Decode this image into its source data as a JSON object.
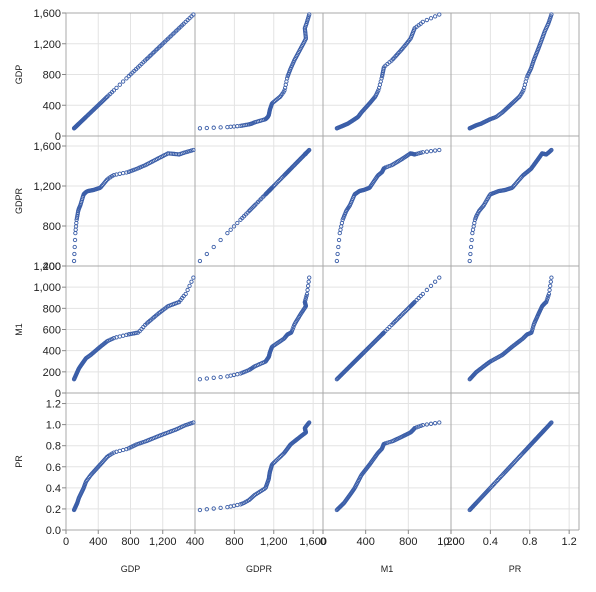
{
  "chart_data": {
    "type": "scatter",
    "variables": [
      "GDP",
      "GDPR",
      "M1",
      "PR"
    ],
    "grid": true,
    "axes": {
      "GDP": {
        "range": [
          0,
          1600
        ],
        "ticks": [
          0,
          400,
          800,
          1200
        ],
        "tick_labels": [
          "0",
          "400",
          "800",
          "1,200"
        ],
        "row_ticks": [
          0,
          400,
          800,
          1200,
          1600
        ],
        "row_tick_labels": [
          "0",
          "400",
          "800",
          "1,200",
          "1,600"
        ],
        "data_range": [
          100,
          1580
        ]
      },
      "GDPR": {
        "range": [
          400,
          1700
        ],
        "ticks": [
          400,
          800,
          1200,
          1600
        ],
        "tick_labels": [
          "400",
          "800",
          "1,200",
          "1,600"
        ],
        "row_ticks": [
          400,
          800,
          1200,
          1600
        ],
        "row_tick_labels": [
          "400",
          "800",
          "1,200",
          "1,600"
        ],
        "data_range": [
          450,
          1560
        ]
      },
      "M1": {
        "range": [
          0,
          1200
        ],
        "ticks": [
          0,
          400,
          800,
          1200
        ],
        "tick_labels": [
          "0",
          "400",
          "800",
          "1,200"
        ],
        "row_ticks": [
          0,
          200,
          400,
          600,
          800,
          1000,
          1200
        ],
        "row_tick_labels": [
          "0",
          "200",
          "400",
          "600",
          "800",
          "1,000",
          "1,200"
        ],
        "data_range": [
          130,
          1090
        ]
      },
      "PR": {
        "range": [
          0,
          1.3
        ],
        "ticks": [
          0,
          0.4,
          0.8,
          1.2
        ],
        "tick_labels": [
          "0.0",
          "0.4",
          "0.8",
          "1.2"
        ],
        "row_ticks": [
          0,
          0.2,
          0.4,
          0.6,
          0.8,
          1.0,
          1.2
        ],
        "row_tick_labels": [
          "0.0",
          "0.2",
          "0.4",
          "0.6",
          "0.8",
          "1.0",
          "1.2"
        ],
        "data_range": [
          0.19,
          1.02
        ]
      }
    },
    "series_shapes": {
      "GDP": [
        [
          0,
          0
        ],
        [
          0.15,
          0.04
        ],
        [
          0.3,
          0.1
        ],
        [
          0.45,
          0.22
        ],
        [
          0.52,
          0.28
        ],
        [
          0.56,
          0.34
        ],
        [
          0.6,
          0.45
        ],
        [
          0.7,
          0.6
        ],
        [
          0.82,
          0.75
        ],
        [
          0.95,
          0.92
        ],
        [
          1,
          1
        ]
      ],
      "GDPR": [
        [
          0,
          0
        ],
        [
          0.04,
          0.25
        ],
        [
          0.08,
          0.37
        ],
        [
          0.13,
          0.45
        ],
        [
          0.18,
          0.5
        ],
        [
          0.25,
          0.6
        ],
        [
          0.32,
          0.63
        ],
        [
          0.38,
          0.64
        ],
        [
          0.45,
          0.66
        ],
        [
          0.55,
          0.77
        ],
        [
          0.65,
          0.83
        ],
        [
          0.75,
          0.9
        ],
        [
          0.85,
          0.97
        ],
        [
          0.92,
          0.96
        ],
        [
          1,
          1
        ]
      ],
      "M1": [
        [
          0,
          0
        ],
        [
          0.2,
          0.14
        ],
        [
          0.35,
          0.24
        ],
        [
          0.5,
          0.36
        ],
        [
          0.6,
          0.44
        ],
        [
          0.66,
          0.46
        ],
        [
          0.7,
          0.54
        ],
        [
          0.78,
          0.64
        ],
        [
          0.85,
          0.72
        ],
        [
          0.92,
          0.76
        ],
        [
          0.96,
          0.84
        ],
        [
          1,
          1
        ]
      ],
      "PR": [
        [
          0,
          0
        ],
        [
          0.1,
          0.08
        ],
        [
          0.25,
          0.25
        ],
        [
          0.35,
          0.4
        ],
        [
          0.45,
          0.52
        ],
        [
          0.55,
          0.65
        ],
        [
          0.65,
          0.75
        ],
        [
          0.78,
          0.84
        ],
        [
          0.9,
          0.92
        ],
        [
          0.96,
          0.97
        ],
        [
          1,
          1
        ]
      ]
    },
    "n_points": 100,
    "marker_color": "#3b5ea8"
  }
}
